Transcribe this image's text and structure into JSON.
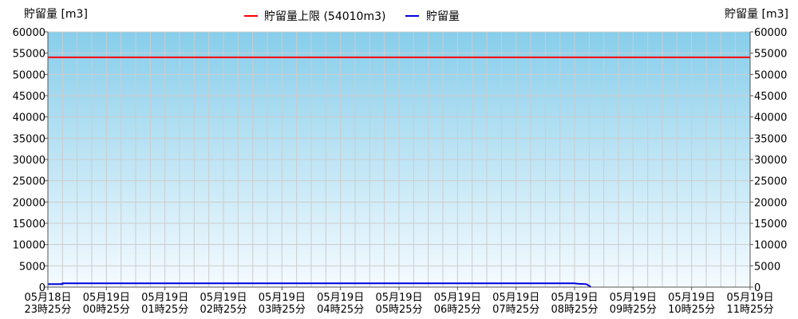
{
  "chart_data": {
    "type": "line",
    "ylabel_left": "貯留量 [m3]",
    "ylabel_right": "貯留量 [m3]",
    "ylim": [
      0,
      60000
    ],
    "yticks": [
      0,
      5000,
      10000,
      15000,
      20000,
      25000,
      30000,
      35000,
      40000,
      45000,
      50000,
      55000,
      60000
    ],
    "x_range_hours": [
      0,
      12
    ],
    "x_ticks": [
      {
        "line1": "05月18日",
        "line2": "23時25分",
        "pos": 0
      },
      {
        "line1": "05月19日",
        "line2": "00時25分",
        "pos": 1
      },
      {
        "line1": "05月19日",
        "line2": "01時25分",
        "pos": 2
      },
      {
        "line1": "05月19日",
        "line2": "02時25分",
        "pos": 3
      },
      {
        "line1": "05月19日",
        "line2": "03時25分",
        "pos": 4
      },
      {
        "line1": "05月19日",
        "line2": "04時25分",
        "pos": 5
      },
      {
        "line1": "05月19日",
        "line2": "05時25分",
        "pos": 6
      },
      {
        "line1": "05月19日",
        "line2": "06時25分",
        "pos": 7
      },
      {
        "line1": "05月19日",
        "line2": "07時25分",
        "pos": 8
      },
      {
        "line1": "05月19日",
        "line2": "08時25分",
        "pos": 9
      },
      {
        "line1": "05月19日",
        "line2": "09時25分",
        "pos": 10
      },
      {
        "line1": "05月19日",
        "line2": "10時25分",
        "pos": 11
      },
      {
        "line1": "05月19日",
        "line2": "11時25分",
        "pos": 12
      }
    ],
    "grid": true,
    "legend_position": "top-center",
    "series": [
      {
        "name": "貯留量上限 (54010m3)",
        "color": "#ff0000",
        "points": [
          [
            0,
            54010
          ],
          [
            12,
            54010
          ]
        ]
      },
      {
        "name": "貯留量",
        "color": "#0000dd",
        "points": [
          [
            0,
            700
          ],
          [
            0.25,
            700
          ],
          [
            0.25,
            900
          ],
          [
            0.5,
            900
          ],
          [
            1,
            900
          ],
          [
            2,
            900
          ],
          [
            3,
            900
          ],
          [
            4,
            900
          ],
          [
            5,
            900
          ],
          [
            6,
            900
          ],
          [
            7,
            900
          ],
          [
            8,
            900
          ],
          [
            9,
            900
          ],
          [
            9.05,
            800
          ],
          [
            9.2,
            700
          ],
          [
            9.25,
            300
          ],
          [
            9.28,
            0
          ]
        ]
      }
    ]
  },
  "colors": {
    "plot_top": "#87ceeb",
    "plot_bottom": "#f5fbff",
    "grid": "#cccccc",
    "axis": "#555555"
  }
}
